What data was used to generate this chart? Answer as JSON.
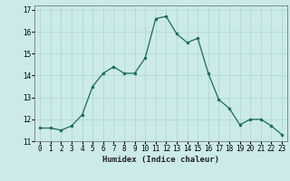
{
  "x": [
    0,
    1,
    2,
    3,
    4,
    5,
    6,
    7,
    8,
    9,
    10,
    11,
    12,
    13,
    14,
    15,
    16,
    17,
    18,
    19,
    20,
    21,
    22,
    23
  ],
  "y": [
    11.6,
    11.6,
    11.5,
    11.7,
    12.2,
    13.5,
    14.1,
    14.4,
    14.1,
    14.1,
    14.8,
    16.6,
    16.7,
    15.9,
    15.5,
    15.7,
    14.1,
    12.9,
    12.5,
    11.75,
    12.0,
    12.0,
    11.7,
    11.3
  ],
  "xlabel": "Humidex (Indice chaleur)",
  "ylim": [
    11,
    17.2
  ],
  "xlim": [
    -0.5,
    23.5
  ],
  "yticks": [
    11,
    12,
    13,
    14,
    15,
    16,
    17
  ],
  "xtick_labels": [
    "0",
    "1",
    "2",
    "3",
    "4",
    "5",
    "6",
    "7",
    "8",
    "9",
    "10",
    "11",
    "12",
    "13",
    "14",
    "15",
    "16",
    "17",
    "18",
    "19",
    "20",
    "21",
    "22",
    "23"
  ],
  "line_color": "#1a6b5a",
  "marker_size": 2.0,
  "bg_color": "#cceaea",
  "grid_color": "#aad4d4",
  "label_fontsize": 6.5,
  "tick_fontsize": 5.5
}
